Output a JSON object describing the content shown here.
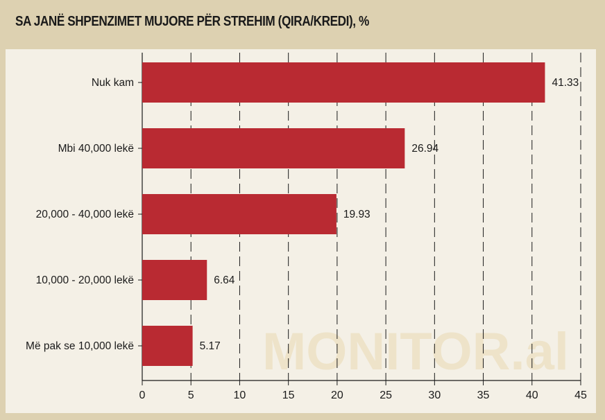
{
  "title": "SA JANË SHPENZIMET MUJORE PËR STREHIM  (QIRA/KREDI), %",
  "watermark": "MONITOR.al",
  "colors": {
    "frame": "#ddd1b1",
    "plot_bg": "#f4f0e6",
    "bar": "#b92a32",
    "grid": "#1a1a1a"
  },
  "chart_data": {
    "type": "bar",
    "orientation": "horizontal",
    "categories": [
      "Nuk kam",
      "Mbi 40,000 lekë",
      "20,000 - 40,000 lekë",
      "10,000 - 20,000 lekë",
      "Më pak se 10,000 lekë"
    ],
    "values": [
      41.33,
      26.94,
      19.93,
      6.64,
      5.17
    ],
    "value_labels": [
      "41.33",
      "26.94",
      "19.93",
      "6.64",
      "5.17"
    ],
    "xlim": [
      0,
      45
    ],
    "xticks": [
      0,
      5,
      10,
      15,
      20,
      25,
      30,
      35,
      40,
      45
    ],
    "xtick_labels": [
      "0",
      "5",
      "10",
      "15",
      "20",
      "25",
      "30",
      "35",
      "40",
      "45"
    ],
    "grid": "vertical dashed",
    "xlabel": "",
    "ylabel": ""
  }
}
